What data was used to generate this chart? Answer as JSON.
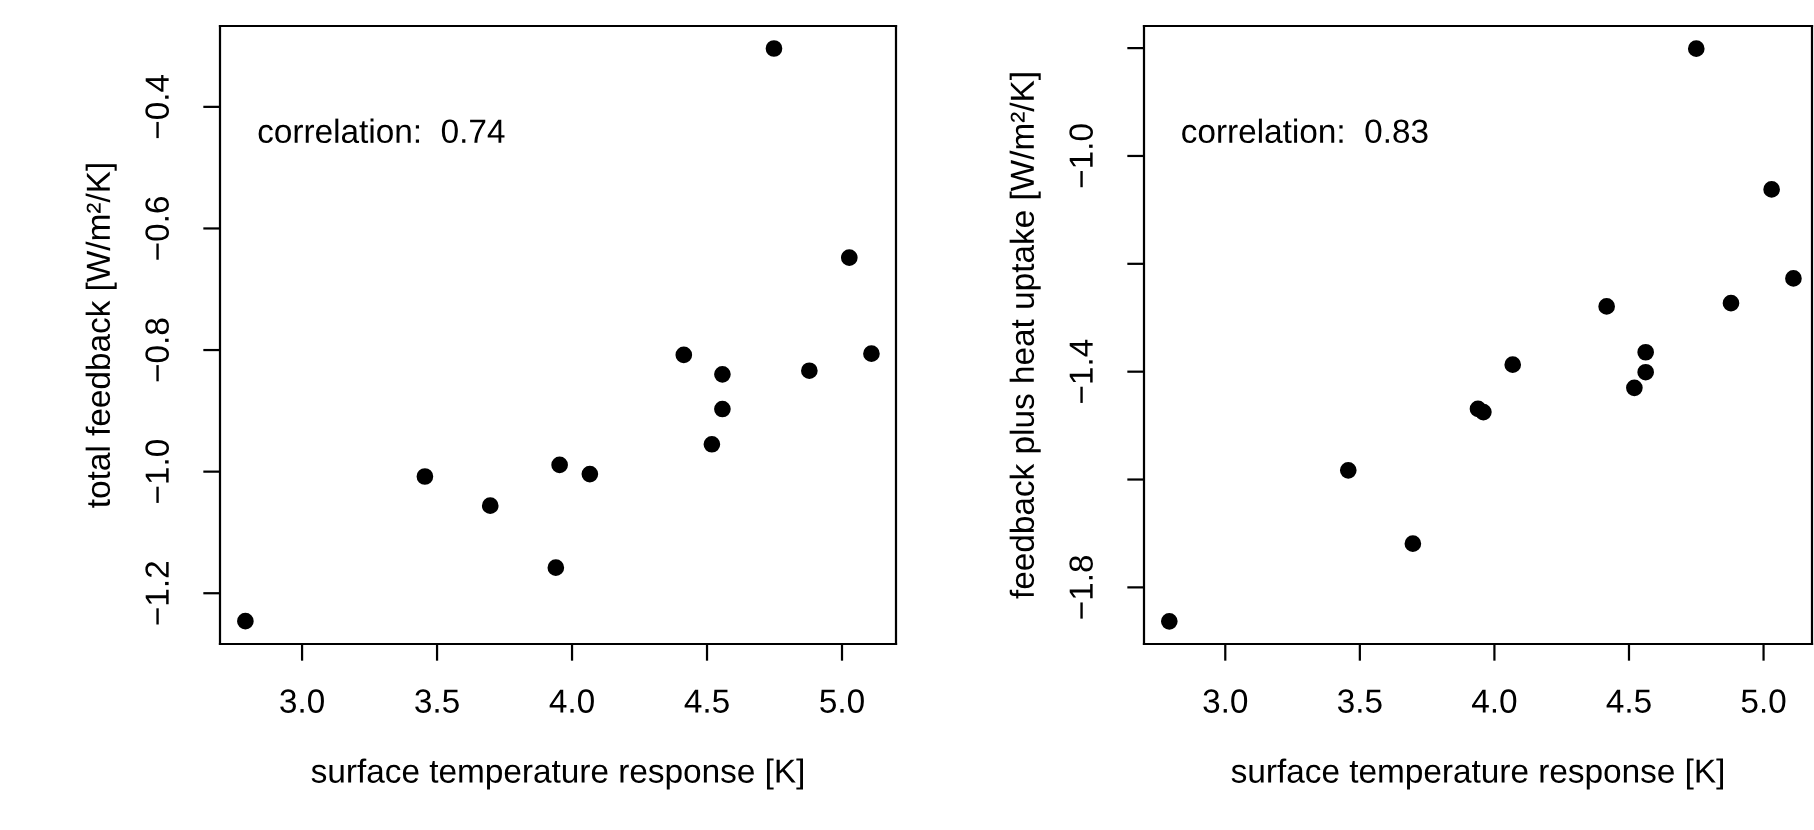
{
  "chart_data": [
    {
      "type": "scatter",
      "xlabel": "surface temperature response [K]",
      "ylabel": "total feedback [W/m²/K]",
      "annotations": [
        "correlation:  0.74"
      ],
      "marker": "circle",
      "series": [
        {
          "color": "#000000",
          "x": [
            2.79,
            3.455,
            3.697,
            3.94,
            3.954,
            4.066,
            4.414,
            4.518,
            4.557,
            4.557,
            4.748,
            4.879,
            5.027,
            5.109
          ],
          "values": [
            -1.246,
            -1.008,
            -1.056,
            -1.158,
            -0.989,
            -1.004,
            -0.808,
            -0.955,
            -0.84,
            -0.897,
            -0.304,
            -0.834,
            -0.648,
            -0.806
          ]
        }
      ],
      "xlim": [
        2.696,
        5.2
      ],
      "ylim": [
        -1.2835,
        -0.267
      ],
      "xticks": [
        {
          "value": 3,
          "label": "3.0"
        },
        {
          "value": 3.5,
          "label": "3.5"
        },
        {
          "value": 4,
          "label": "4.0"
        },
        {
          "value": 4.5,
          "label": "4.5"
        },
        {
          "value": 5,
          "label": "5.0"
        }
      ],
      "yticks": [
        {
          "value": -0.4,
          "label": "−0.4"
        },
        {
          "value": -0.6,
          "label": "−0.6"
        },
        {
          "value": -0.8,
          "label": "−0.8"
        },
        {
          "value": -1.0,
          "label": "−1.0"
        },
        {
          "value": -1.2,
          "label": "−1.2"
        }
      ]
    },
    {
      "type": "scatter",
      "xlabel": "surface temperature response [K]",
      "ylabel": "feedback plus heat uptake [W/m²/K]",
      "annotations": [
        "correlation:  0.83"
      ],
      "marker": "circle",
      "series": [
        {
          "color": "#000000",
          "x": [
            2.792,
            3.457,
            3.697,
            3.939,
            3.959,
            4.068,
            4.417,
            4.52,
            4.562,
            4.562,
            4.75,
            4.879,
            5.03,
            5.111
          ],
          "values": [
            -1.863,
            -1.583,
            -1.719,
            -1.469,
            -1.475,
            -1.387,
            -1.279,
            -1.43,
            -1.364,
            -1.401,
            -0.801,
            -1.273,
            -1.062,
            -1.227
          ]
        }
      ],
      "xlim": [
        2.698,
        5.18
      ],
      "ylim": [
        -1.905,
        -0.759
      ],
      "xticks": [
        {
          "value": 3,
          "label": "3.0"
        },
        {
          "value": 3.5,
          "label": "3.5"
        },
        {
          "value": 4,
          "label": "4.0"
        },
        {
          "value": 4.5,
          "label": "4.5"
        },
        {
          "value": 5,
          "label": "5.0"
        }
      ],
      "yticks": [
        {
          "value": -0.8,
          "label": null
        },
        {
          "value": -1.0,
          "label": "−1.0"
        },
        {
          "value": -1.2,
          "label": null
        },
        {
          "value": -1.4,
          "label": "−1.4"
        },
        {
          "value": -1.6,
          "label": null
        },
        {
          "value": -1.8,
          "label": "−1.8"
        }
      ]
    }
  ]
}
